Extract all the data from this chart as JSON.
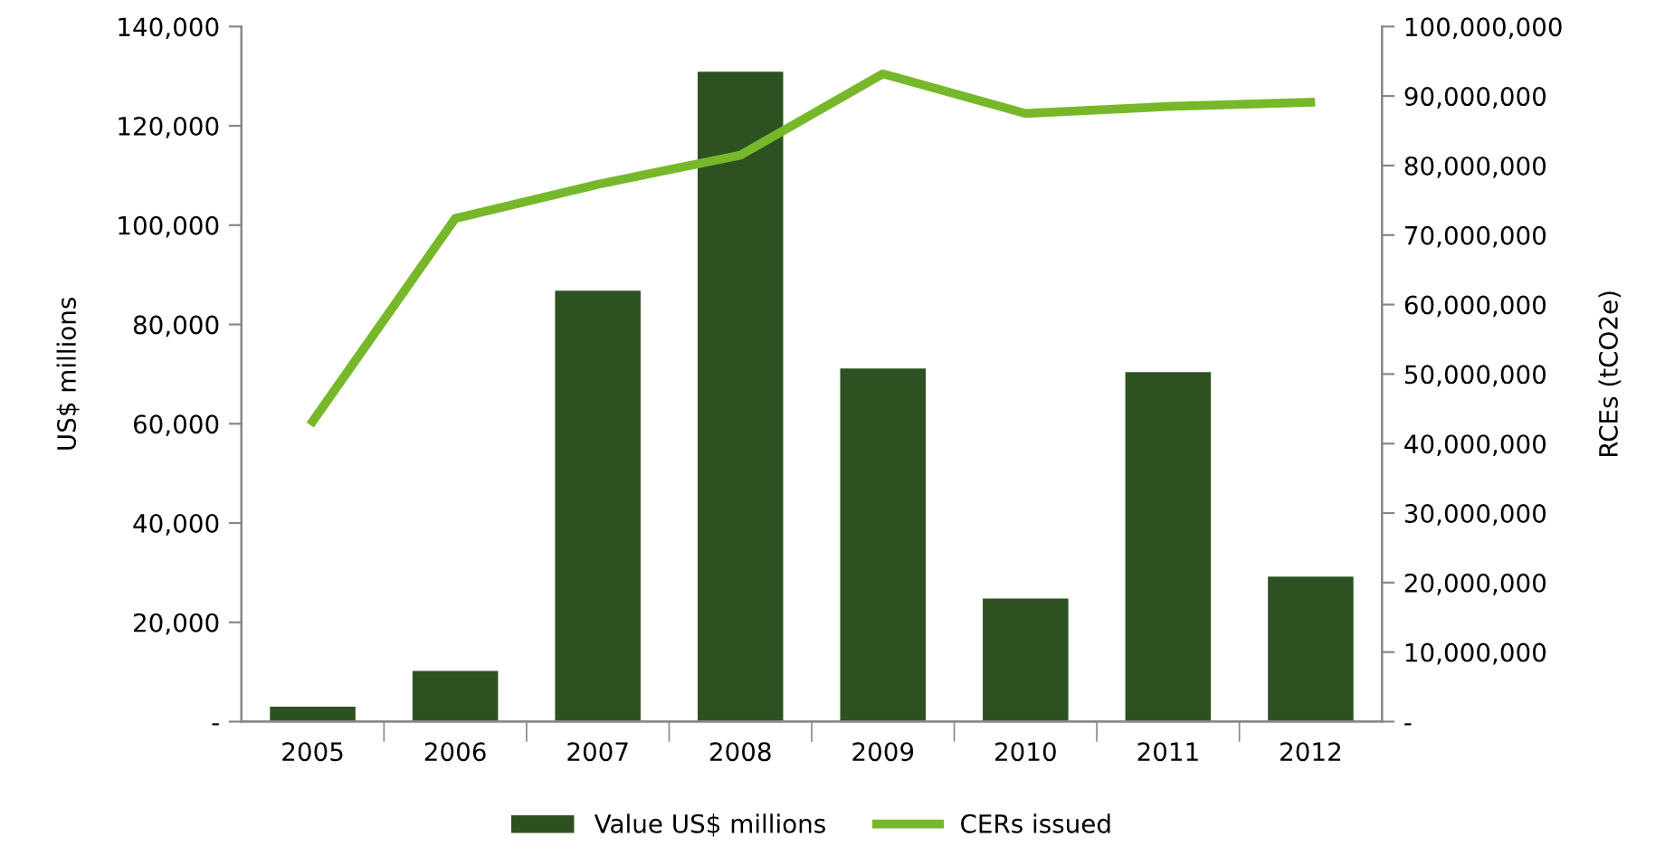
{
  "chart_data": {
    "type": "bar",
    "categories": [
      "2005",
      "2006",
      "2007",
      "2008",
      "2009",
      "2010",
      "2011",
      "2012"
    ],
    "series": [
      {
        "name": "Value US$ millions",
        "color": "#2d5121",
        "values": [
          3000,
          10200,
          86800,
          130900,
          71100,
          24800,
          70400,
          29200
        ]
      },
      {
        "name": "CERs issued",
        "type": "line",
        "axis": "y2",
        "color": "#77b82a",
        "values": [
          43200000,
          72400000,
          77300000,
          81500000,
          93200000,
          87500000,
          88500000,
          89100000
        ]
      }
    ],
    "ylabel": "US$ millions",
    "y2label": "RCEs (tCO2e)",
    "ylim": [
      0,
      140000
    ],
    "yticks": [
      {
        "value": 0,
        "label": "-"
      },
      {
        "value": 20000,
        "label": "20,000"
      },
      {
        "value": 40000,
        "label": "40,000"
      },
      {
        "value": 60000,
        "label": "60,000"
      },
      {
        "value": 80000,
        "label": "80,000"
      },
      {
        "value": 100000,
        "label": "100,000"
      },
      {
        "value": 120000,
        "label": "120,000"
      },
      {
        "value": 140000,
        "label": "140,000"
      }
    ],
    "y2lim": [
      0,
      100000000
    ],
    "y2ticks": [
      {
        "value": 0,
        "label": "-"
      },
      {
        "value": 10000000,
        "label": "10,000,000"
      },
      {
        "value": 20000000,
        "label": "20,000,000"
      },
      {
        "value": 30000000,
        "label": "30,000,000"
      },
      {
        "value": 40000000,
        "label": "40,000,000"
      },
      {
        "value": 50000000,
        "label": "50,000,000"
      },
      {
        "value": 60000000,
        "label": "60,000,000"
      },
      {
        "value": 70000000,
        "label": "70,000,000"
      },
      {
        "value": 80000000,
        "label": "80,000,000"
      },
      {
        "value": 90000000,
        "label": "90,000,000"
      },
      {
        "value": 100000000,
        "label": "100,000,000"
      }
    ],
    "grid": false,
    "legend": "bottom",
    "marker": "none",
    "line_style": "solid"
  }
}
